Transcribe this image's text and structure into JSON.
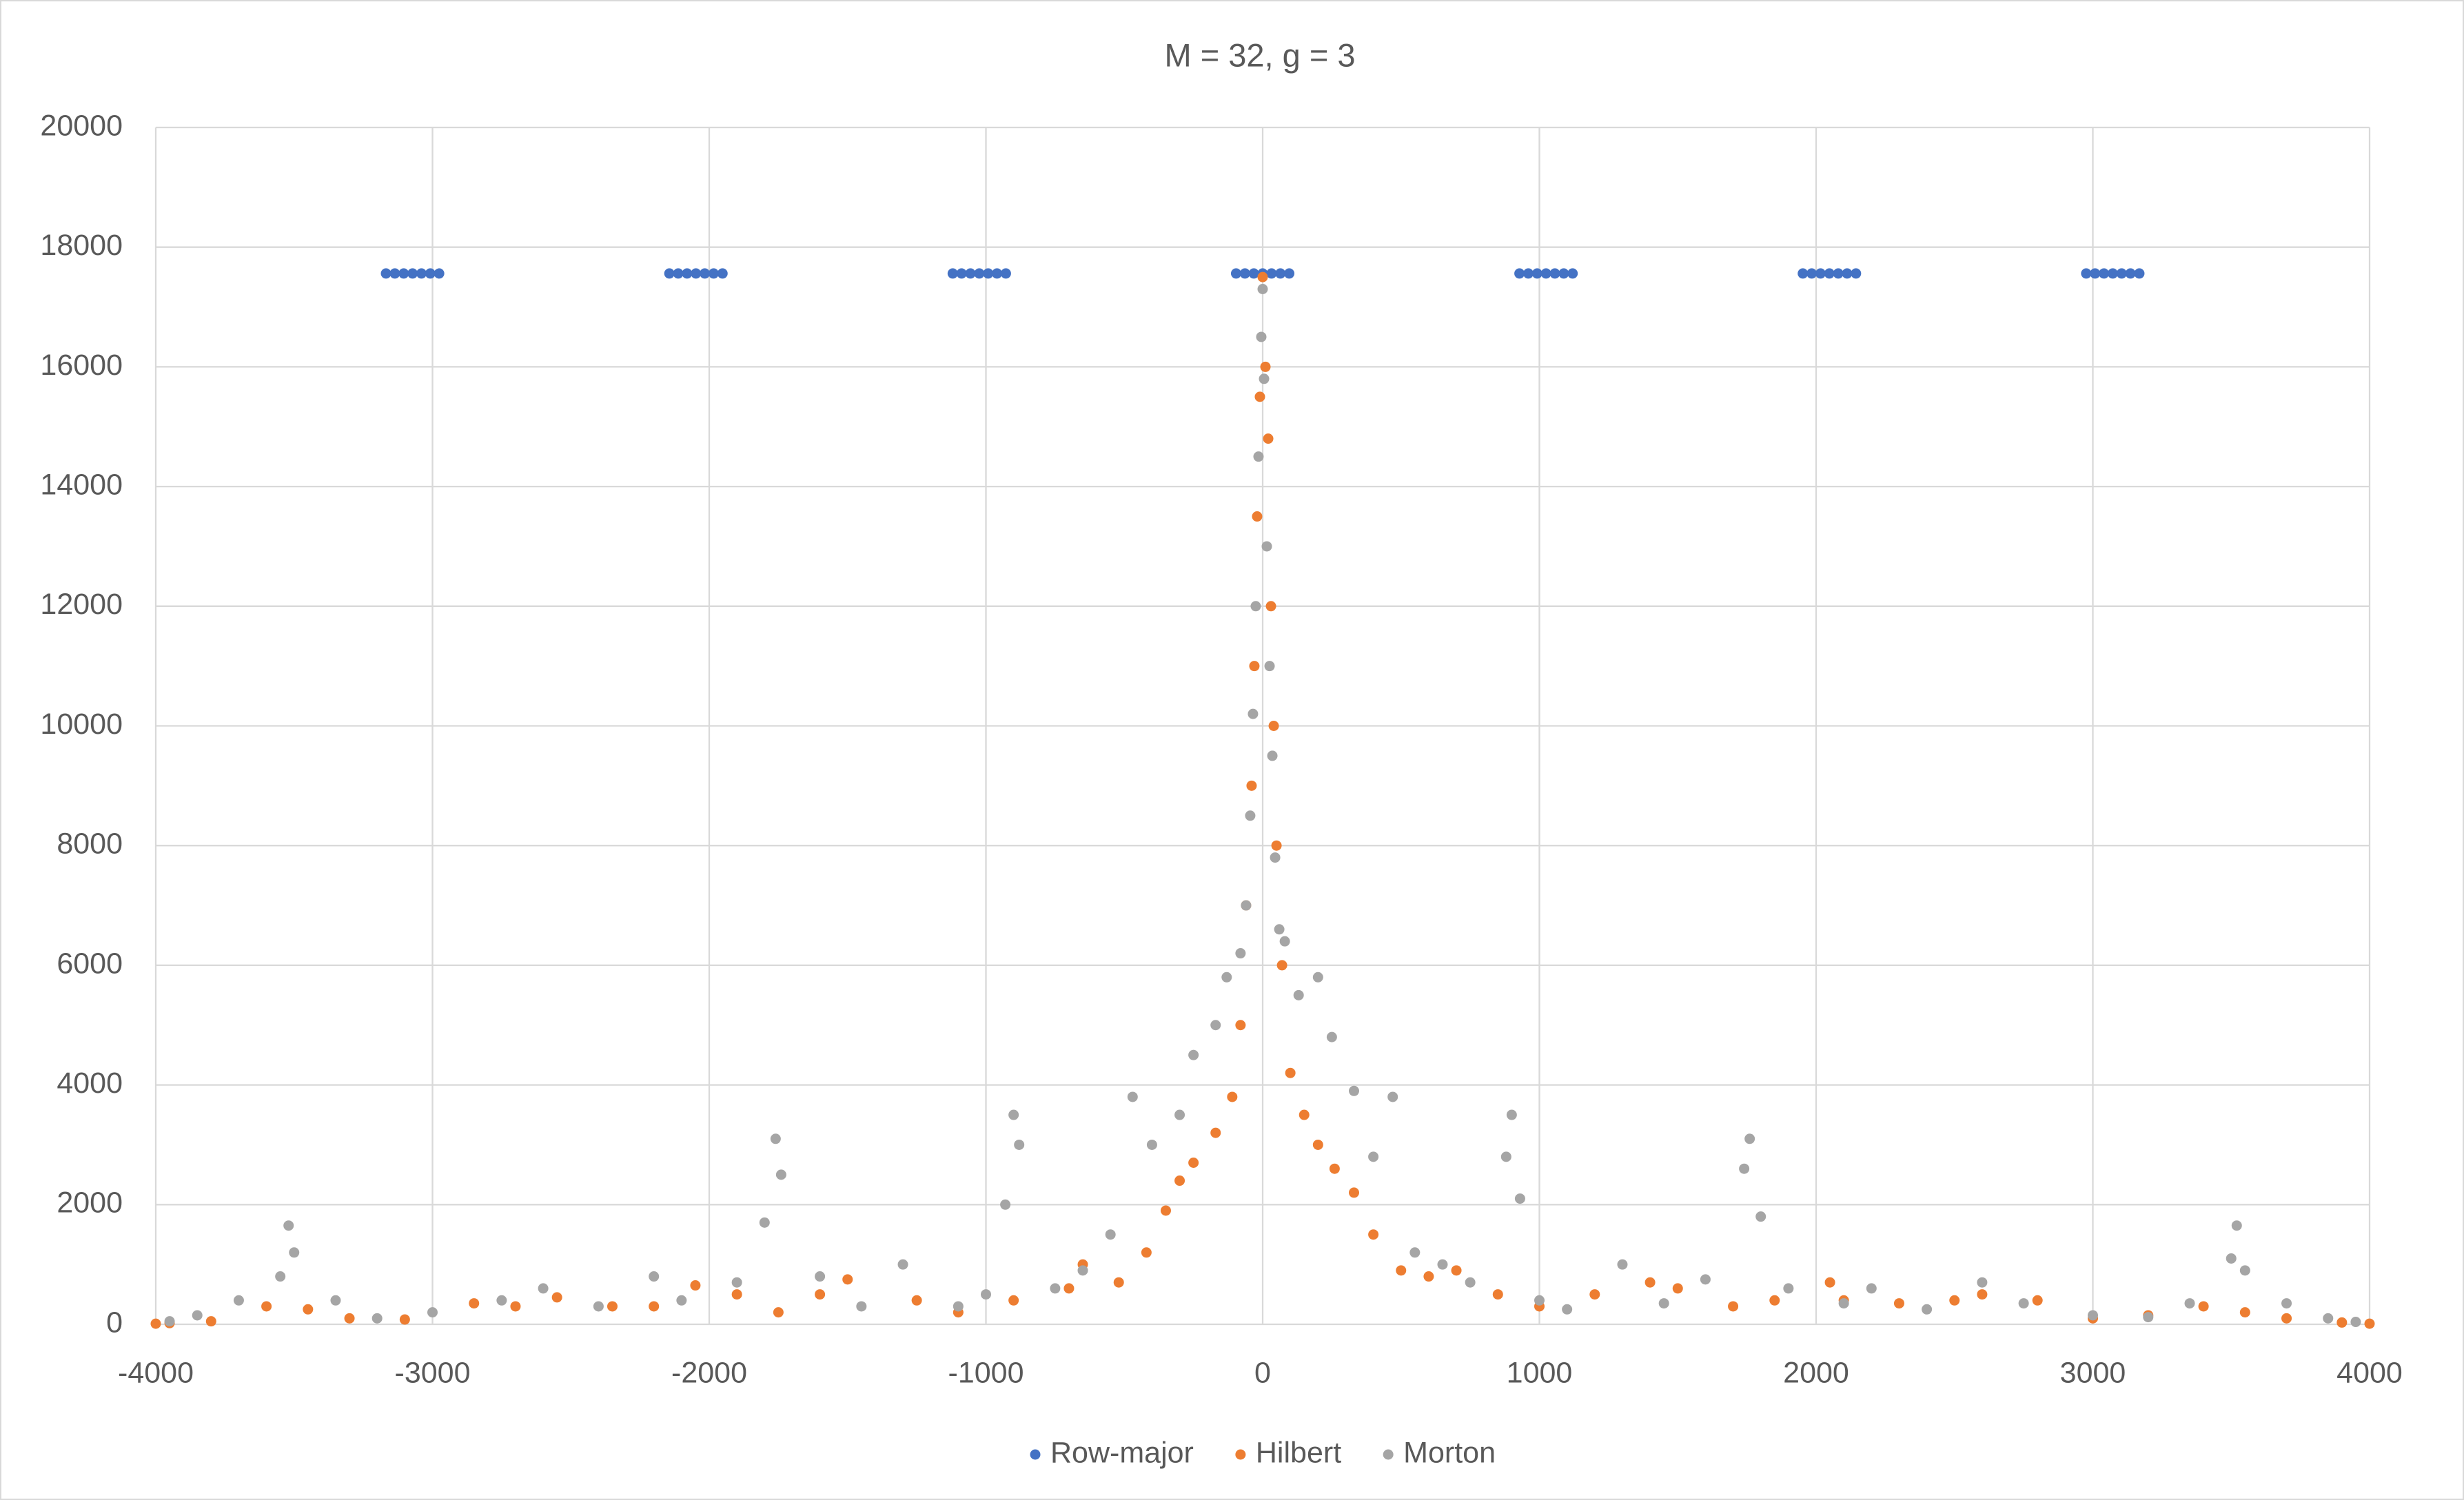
{
  "chart_data": {
    "type": "scatter",
    "title": "M = 32, g = 3",
    "xlim": [
      -4000,
      4000
    ],
    "xticks": [
      -4000,
      -3000,
      -2000,
      -1000,
      0,
      1000,
      2000,
      3000,
      4000
    ],
    "ylim": [
      0,
      20000
    ],
    "yticks": [
      0,
      2000,
      4000,
      6000,
      8000,
      10000,
      12000,
      14000,
      16000,
      18000,
      20000
    ],
    "grid": true,
    "legend": "bottom",
    "series": [
      {
        "name": "Row-major",
        "color": "#4472c4",
        "x": [
          -3168,
          -3136,
          -3104,
          -3072,
          -3040,
          -3008,
          -2976,
          -2144,
          -2112,
          -2080,
          -2048,
          -2016,
          -1984,
          -1952,
          -1120,
          -1088,
          -1056,
          -1024,
          -992,
          -960,
          -928,
          -96,
          -64,
          -32,
          0,
          32,
          64,
          96,
          928,
          960,
          992,
          1024,
          1056,
          1088,
          1120,
          1952,
          1984,
          2016,
          2048,
          2080,
          2112,
          2144,
          2976,
          3008,
          3040,
          3072,
          3104,
          3136,
          3168
        ],
        "values": [
          17560,
          17560,
          17560,
          17560,
          17560,
          17560,
          17560,
          17560,
          17560,
          17560,
          17560,
          17560,
          17560,
          17560,
          17560,
          17560,
          17560,
          17560,
          17560,
          17560,
          17560,
          17560,
          17560,
          17560,
          17560,
          17560,
          17560,
          17560,
          17560,
          17560,
          17560,
          17560,
          17560,
          17560,
          17560,
          17560,
          17560,
          17560,
          17560,
          17560,
          17560,
          17560,
          17560,
          17560,
          17560,
          17560,
          17560,
          17560,
          17560
        ]
      },
      {
        "name": "Hilbert",
        "color": "#ed7d31",
        "x": [
          0,
          10,
          -10,
          20,
          -20,
          30,
          -30,
          40,
          -40,
          50,
          -60,
          70,
          -80,
          100,
          -110,
          150,
          -170,
          200,
          -250,
          260,
          -300,
          330,
          -350,
          400,
          -420,
          500,
          -520,
          600,
          -650,
          700,
          -700,
          850,
          -900,
          1000,
          -1100,
          1200,
          -1250,
          1400,
          -1500,
          1500,
          -1600,
          1700,
          -1750,
          1850,
          -1900,
          2050,
          -2050,
          2100,
          -2200,
          2300,
          -2350,
          2500,
          -2550,
          2600,
          -2700,
          2800,
          -2850,
          3000,
          -3100,
          3200,
          -3300,
          3400,
          -3450,
          3550,
          -3600,
          3700,
          -3800,
          3900,
          -3950,
          4000,
          -4000
        ],
        "values": [
          17500,
          16000,
          15500,
          14800,
          13500,
          12000,
          11000,
          10000,
          9000,
          8000,
          7000,
          6000,
          5000,
          4200,
          3800,
          3500,
          3200,
          3000,
          2700,
          2600,
          2400,
          2200,
          1900,
          1500,
          1200,
          900,
          700,
          800,
          1000,
          900,
          600,
          500,
          400,
          300,
          200,
          500,
          400,
          700,
          750,
          600,
          500,
          300,
          200,
          400,
          500,
          700,
          650,
          400,
          300,
          350,
          300,
          400,
          450,
          500,
          300,
          400,
          350,
          100,
          80,
          150,
          100,
          300,
          250,
          200,
          300,
          100,
          50,
          30,
          20,
          10,
          10
        ]
      },
      {
        "name": "Morton",
        "color": "#a5a5a5",
        "x": [
          0,
          -5,
          5,
          -15,
          15,
          -25,
          25,
          -35,
          35,
          -45,
          45,
          -60,
          60,
          -80,
          80,
          -130,
          130,
          -170,
          200,
          -250,
          250,
          -300,
          330,
          -400,
          400,
          -470,
          470,
          -550,
          550,
          -650,
          650,
          -750,
          750,
          -880,
          880,
          -900,
          900,
          -930,
          930,
          -1000,
          1000,
          -1100,
          1100,
          -1300,
          1300,
          -1450,
          1450,
          -1600,
          1600,
          -1740,
          1740,
          -1760,
          1760,
          -1800,
          1800,
          -1900,
          1900,
          -2100,
          2100,
          -2200,
          2200,
          -2400,
          2400,
          -2600,
          2600,
          -2750,
          2750,
          -3000,
          3000,
          -3200,
          3200,
          -3350,
          3350,
          -3500,
          3500,
          -3520,
          3520,
          -3550,
          3550,
          -3700,
          3700,
          -3850,
          3850,
          -3950,
          3950
        ],
        "values": [
          17300,
          16500,
          15800,
          14500,
          13000,
          12000,
          11000,
          10200,
          9500,
          8500,
          7800,
          7000,
          6600,
          6200,
          6400,
          5800,
          5500,
          5000,
          5800,
          4500,
          4800,
          3500,
          3900,
          3000,
          2800,
          3800,
          3800,
          1500,
          1200,
          900,
          1000,
          600,
          700,
          3000,
          2800,
          3500,
          3500,
          2000,
          2100,
          500,
          400,
          300,
          250,
          1000,
          1000,
          300,
          350,
          800,
          750,
          2500,
          2600,
          3100,
          3100,
          1700,
          1800,
          700,
          600,
          400,
          350,
          800,
          600,
          300,
          250,
          600,
          700,
          400,
          350,
          200,
          150,
          100,
          120,
          400,
          350,
          1200,
          1100,
          1650,
          1650,
          800,
          900,
          400,
          350,
          150,
          100,
          50,
          40
        ]
      }
    ]
  }
}
